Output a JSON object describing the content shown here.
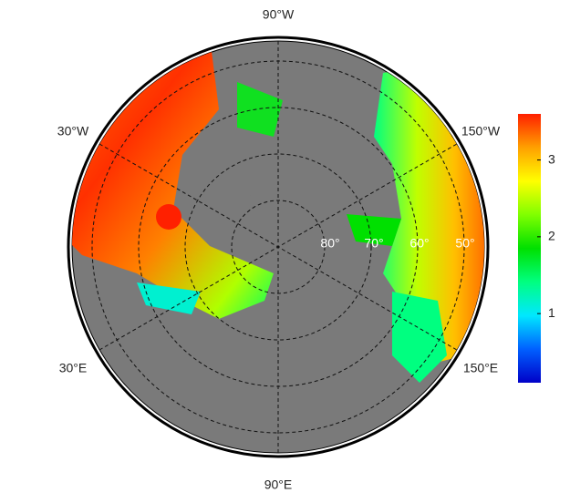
{
  "map": {
    "lon_labels": {
      "top": "90°W",
      "upper_left": "30°W",
      "upper_right": "150°W",
      "lower_left": "30°E",
      "lower_right": "150°E",
      "bottom": "90°E"
    },
    "lat_labels": [
      "80°",
      "70°",
      "60°",
      "50°"
    ]
  },
  "colorbar": {
    "lim": [
      0.1,
      3.6
    ],
    "ticks": [
      1,
      2,
      3
    ],
    "colors": [
      "#0000c8",
      "#0060ff",
      "#00e8ff",
      "#00ff80",
      "#00e000",
      "#80ff00",
      "#ffff00",
      "#ffa000",
      "#ff2000"
    ]
  }
}
